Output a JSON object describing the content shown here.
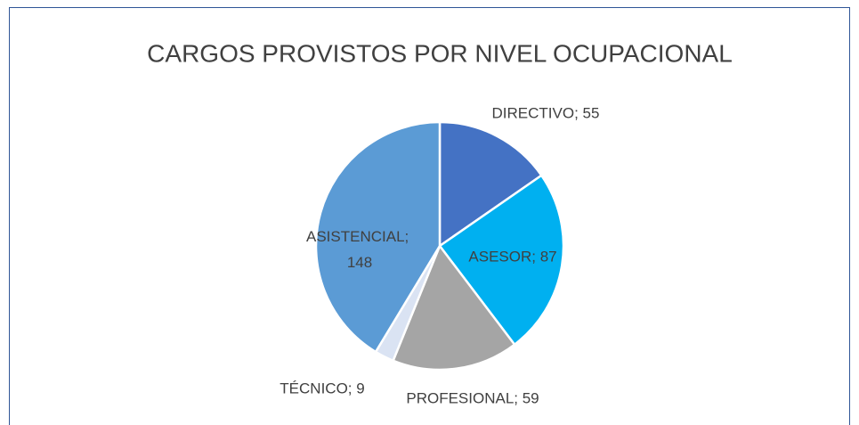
{
  "chart_data": {
    "type": "pie",
    "title": "CARGOS PROVISTOS POR NIVEL OCUPACIONAL",
    "categories": [
      "DIRECTIVO",
      "ASESOR",
      "PROFESIONAL",
      "TÉCNICO",
      "ASISTENCIAL"
    ],
    "values": [
      55,
      87,
      59,
      9,
      148
    ],
    "value_labels": [
      "DIRECTIVO; 55",
      "ASESOR; 87",
      "PROFESIONAL; 59",
      "TÉCNICO; 9",
      "ASISTENCIAL; 148"
    ],
    "colors": [
      "#4472c4",
      "#00b0f0",
      "#a5a5a5",
      "#dae3f3",
      "#5b9bd5"
    ]
  }
}
